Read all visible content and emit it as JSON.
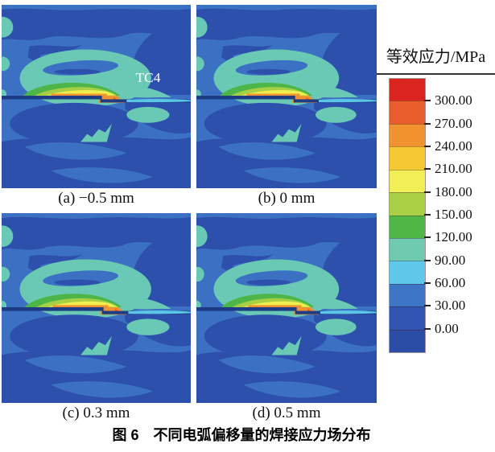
{
  "figure": {
    "caption": "图 6　不同电弧偏移量的焊接应力场分布"
  },
  "panels": [
    {
      "label": "(a) −0.5 mm",
      "annotation": "TC4"
    },
    {
      "label": "(b) 0 mm",
      "annotation": ""
    },
    {
      "label": "(c) 0.3 mm",
      "annotation": ""
    },
    {
      "label": "(d) 0.5 mm",
      "annotation": ""
    }
  ],
  "legend": {
    "title": "等效应力/MPa",
    "ticks": [
      "300.00",
      "270.00",
      "240.00",
      "210.00",
      "180.00",
      "150.00",
      "120.00",
      "90.00",
      "60.00",
      "30.00",
      "0.00"
    ],
    "band_colors": [
      "#da2420",
      "#e95c2b",
      "#f0932f",
      "#f6c833",
      "#f1ef55",
      "#a9d045",
      "#50b747",
      "#6fc9ae",
      "#5ec8ea",
      "#3c76c4",
      "#2f55b0",
      "#2b4da5"
    ]
  },
  "palette": {
    "background": "#3b70c2",
    "dark_blue": "#2c50ab",
    "navy": "#1e3c85",
    "teal": "#69c9b4",
    "cyan": "#5cc6e6",
    "green": "#4eb648",
    "yellow_green": "#a6cf44",
    "yellow": "#efee4e",
    "orange": "#f0922f",
    "red_orange": "#e8562a",
    "annotation_text": "#ffffff"
  }
}
